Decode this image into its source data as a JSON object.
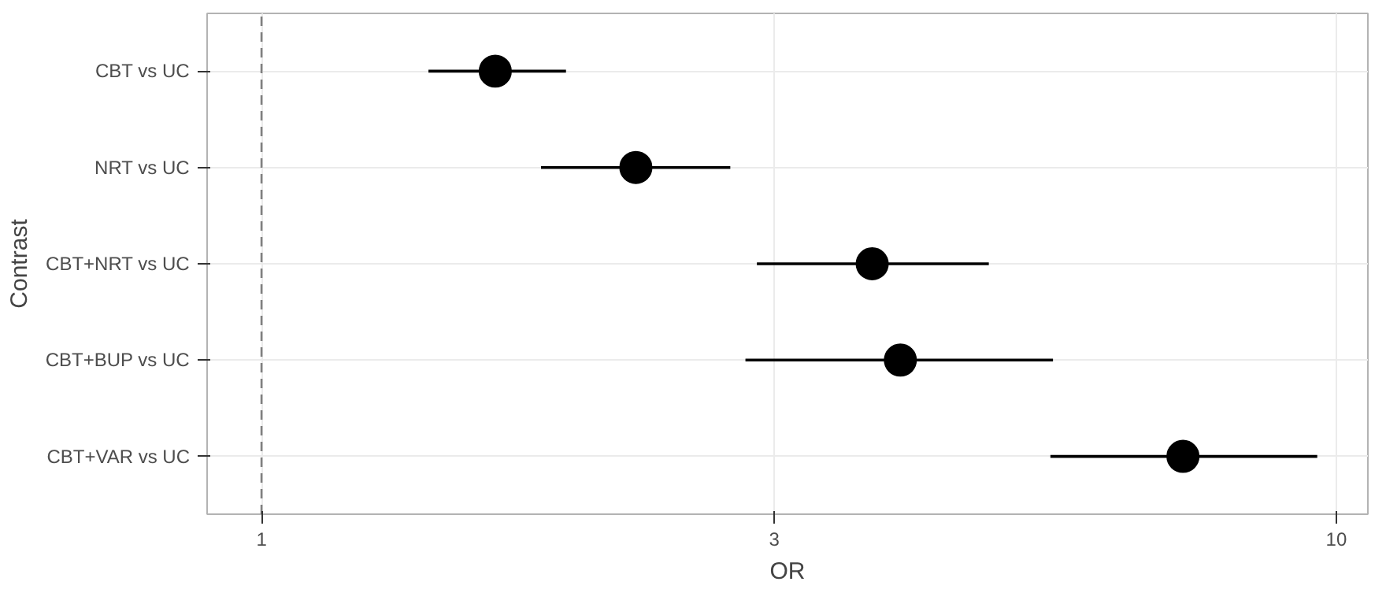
{
  "chart_data": {
    "type": "scatter",
    "orientation": "horizontal",
    "xlabel": "OR",
    "ylabel": "Contrast",
    "categories": [
      "CBT vs UC",
      "NRT vs UC",
      "CBT+NRT vs UC",
      "CBT+BUP vs UC",
      "CBT+VAR vs UC"
    ],
    "values": [
      1.65,
      2.23,
      3.7,
      3.93,
      7.2
    ],
    "errors": [
      [
        1.43,
        1.92
      ],
      [
        1.82,
        2.73
      ],
      [
        2.89,
        4.75
      ],
      [
        2.82,
        5.45
      ],
      [
        5.42,
        9.6
      ]
    ],
    "color": "#000000",
    "marker": "circle",
    "log": "x",
    "xlim": [
      0.89,
      10.7
    ],
    "xticks": [
      1,
      3,
      10
    ],
    "grid": true,
    "ref_lines": [
      {
        "axis": "x",
        "value": 1,
        "color": "#808080",
        "line_style": "dashed"
      }
    ]
  }
}
